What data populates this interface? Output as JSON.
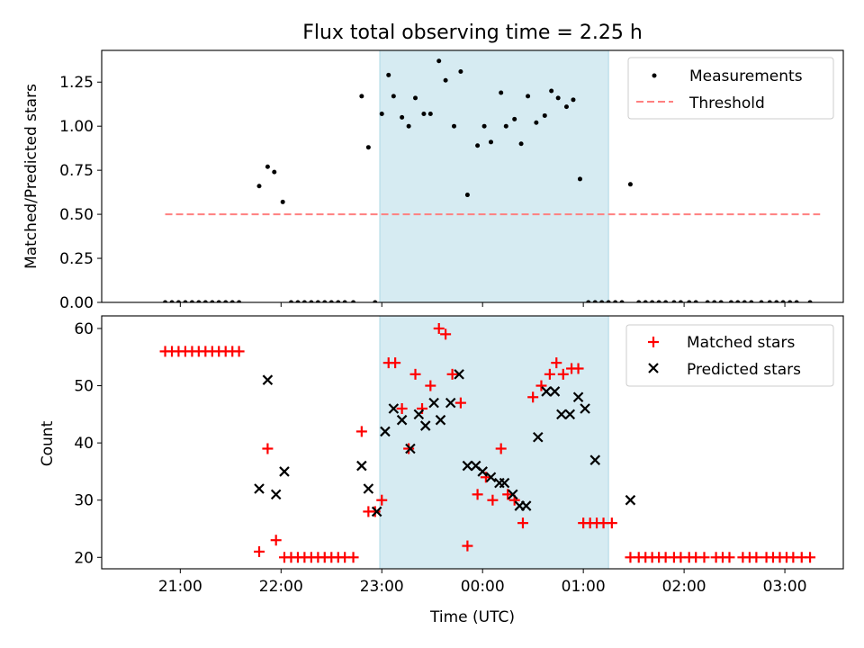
{
  "title": "Flux total observing time = 2.25 h",
  "colors": {
    "measurement": "#000000",
    "threshold": "#ff8080",
    "matched": "#ff0000",
    "predicted": "#000000",
    "shade": "#add8e6"
  },
  "chart_data": [
    {
      "type": "scatter",
      "ylabel": "Matched/Predicted stars",
      "xlabel": "",
      "x_unit": "hours since 21:00 UTC",
      "xlim": [
        -0.78,
        6.58
      ],
      "ylim": [
        0,
        1.43
      ],
      "yticks": [
        0,
        0.25,
        0.5,
        0.75,
        1.0,
        1.25
      ],
      "ytick_labels": [
        "0.00",
        "0.25",
        "0.50",
        "0.75",
        "1.00",
        "1.25"
      ],
      "shaded_interval": [
        1.98,
        4.25
      ],
      "legend": {
        "position": "upper-right",
        "entries": [
          "Measurements",
          "Threshold"
        ]
      },
      "threshold": {
        "name": "Threshold",
        "y": 0.5,
        "x": [
          -0.15,
          6.35
        ]
      },
      "series": [
        {
          "name": "Measurements",
          "points": [
            [
              -0.15,
              0
            ],
            [
              -0.083,
              0
            ],
            [
              -0.017,
              0
            ],
            [
              0.05,
              0
            ],
            [
              0.117,
              0
            ],
            [
              0.183,
              0
            ],
            [
              0.25,
              0
            ],
            [
              0.317,
              0
            ],
            [
              0.383,
              0
            ],
            [
              0.45,
              0
            ],
            [
              0.517,
              0
            ],
            [
              0.583,
              0
            ],
            [
              0.783,
              0.66
            ],
            [
              0.867,
              0.77
            ],
            [
              0.933,
              0.74
            ],
            [
              1.017,
              0.57
            ],
            [
              1.1,
              0
            ],
            [
              1.167,
              0
            ],
            [
              1.233,
              0
            ],
            [
              1.3,
              0
            ],
            [
              1.367,
              0
            ],
            [
              1.433,
              0
            ],
            [
              1.5,
              0
            ],
            [
              1.567,
              0
            ],
            [
              1.633,
              0
            ],
            [
              1.717,
              0
            ],
            [
              1.8,
              1.17
            ],
            [
              1.867,
              0.88
            ],
            [
              1.933,
              0
            ],
            [
              2.0,
              1.07
            ],
            [
              2.067,
              1.29
            ],
            [
              2.117,
              1.17
            ],
            [
              2.2,
              1.05
            ],
            [
              2.267,
              1.0
            ],
            [
              2.333,
              1.16
            ],
            [
              2.417,
              1.07
            ],
            [
              2.483,
              1.07
            ],
            [
              2.567,
              1.37
            ],
            [
              2.633,
              1.26
            ],
            [
              2.717,
              1.0
            ],
            [
              2.783,
              1.31
            ],
            [
              2.85,
              0.61
            ],
            [
              2.95,
              0.89
            ],
            [
              3.017,
              1.0
            ],
            [
              3.083,
              0.91
            ],
            [
              3.183,
              1.19
            ],
            [
              3.233,
              1.0
            ],
            [
              3.317,
              1.04
            ],
            [
              3.383,
              0.9
            ],
            [
              3.45,
              1.17
            ],
            [
              3.533,
              1.02
            ],
            [
              3.617,
              1.06
            ],
            [
              3.683,
              1.2
            ],
            [
              3.75,
              1.16
            ],
            [
              3.833,
              1.11
            ],
            [
              3.9,
              1.15
            ],
            [
              3.967,
              0.7
            ],
            [
              4.05,
              0
            ],
            [
              4.117,
              0
            ],
            [
              4.183,
              0
            ],
            [
              4.25,
              0
            ],
            [
              4.317,
              0
            ],
            [
              4.383,
              0
            ],
            [
              4.467,
              0.67
            ],
            [
              4.55,
              0
            ],
            [
              4.617,
              0
            ],
            [
              4.683,
              0
            ],
            [
              4.75,
              0
            ],
            [
              4.817,
              0
            ],
            [
              4.9,
              0
            ],
            [
              4.967,
              0
            ],
            [
              5.05,
              0
            ],
            [
              5.117,
              0
            ],
            [
              5.233,
              0
            ],
            [
              5.3,
              0
            ],
            [
              5.367,
              0
            ],
            [
              5.467,
              0
            ],
            [
              5.533,
              0
            ],
            [
              5.6,
              0
            ],
            [
              5.667,
              0
            ],
            [
              5.767,
              0
            ],
            [
              5.85,
              0
            ],
            [
              5.917,
              0
            ],
            [
              5.983,
              0
            ],
            [
              6.05,
              0
            ],
            [
              6.117,
              0
            ],
            [
              6.25,
              0
            ]
          ]
        }
      ]
    },
    {
      "type": "scatter",
      "ylabel": "Count",
      "xlabel": "Time (UTC)",
      "x_unit": "hours since 21:00 UTC",
      "xlim": [
        -0.78,
        6.58
      ],
      "ylim": [
        18,
        62.2
      ],
      "yticks": [
        20,
        30,
        40,
        50,
        60
      ],
      "ytick_labels": [
        "20",
        "30",
        "40",
        "50",
        "60"
      ],
      "xticks": [
        0,
        1,
        2,
        3,
        4,
        5,
        6
      ],
      "xtick_labels": [
        "21:00",
        "22:00",
        "23:00",
        "00:00",
        "01:00",
        "02:00",
        "03:00"
      ],
      "shaded_interval": [
        1.98,
        4.25
      ],
      "legend": {
        "position": "upper-right",
        "entries": [
          "Matched stars",
          "Predicted stars"
        ]
      },
      "series": [
        {
          "name": "Matched stars",
          "marker": "plus",
          "points": [
            [
              -0.15,
              56
            ],
            [
              -0.083,
              56
            ],
            [
              -0.017,
              56
            ],
            [
              0.05,
              56
            ],
            [
              0.117,
              56
            ],
            [
              0.183,
              56
            ],
            [
              0.25,
              56
            ],
            [
              0.317,
              56
            ],
            [
              0.383,
              56
            ],
            [
              0.45,
              56
            ],
            [
              0.517,
              56
            ],
            [
              0.583,
              56
            ],
            [
              0.783,
              21
            ],
            [
              0.867,
              39
            ],
            [
              0.95,
              23
            ],
            [
              1.033,
              20
            ],
            [
              1.1,
              20
            ],
            [
              1.167,
              20
            ],
            [
              1.233,
              20
            ],
            [
              1.3,
              20
            ],
            [
              1.367,
              20
            ],
            [
              1.433,
              20
            ],
            [
              1.5,
              20
            ],
            [
              1.567,
              20
            ],
            [
              1.633,
              20
            ],
            [
              1.717,
              20
            ],
            [
              1.8,
              42
            ],
            [
              1.867,
              28
            ],
            [
              1.933,
              28
            ],
            [
              2.0,
              30
            ],
            [
              2.067,
              54
            ],
            [
              2.133,
              54
            ],
            [
              2.2,
              46
            ],
            [
              2.267,
              39
            ],
            [
              2.333,
              52
            ],
            [
              2.4,
              46
            ],
            [
              2.483,
              50
            ],
            [
              2.567,
              60
            ],
            [
              2.633,
              59
            ],
            [
              2.7,
              52
            ],
            [
              2.783,
              47
            ],
            [
              2.85,
              22
            ],
            [
              2.95,
              31
            ],
            [
              3.033,
              34
            ],
            [
              3.1,
              30
            ],
            [
              3.183,
              39
            ],
            [
              3.25,
              31
            ],
            [
              3.317,
              30
            ],
            [
              3.4,
              26
            ],
            [
              3.5,
              48
            ],
            [
              3.583,
              50
            ],
            [
              3.667,
              52
            ],
            [
              3.733,
              54
            ],
            [
              3.8,
              52
            ],
            [
              3.883,
              53
            ],
            [
              3.95,
              53
            ],
            [
              4.0,
              26
            ],
            [
              4.067,
              26
            ],
            [
              4.133,
              26
            ],
            [
              4.2,
              26
            ],
            [
              4.283,
              26
            ],
            [
              4.467,
              20
            ],
            [
              4.55,
              20
            ],
            [
              4.617,
              20
            ],
            [
              4.683,
              20
            ],
            [
              4.75,
              20
            ],
            [
              4.817,
              20
            ],
            [
              4.9,
              20
            ],
            [
              4.967,
              20
            ],
            [
              5.05,
              20
            ],
            [
              5.117,
              20
            ],
            [
              5.2,
              20
            ],
            [
              5.317,
              20
            ],
            [
              5.383,
              20
            ],
            [
              5.45,
              20
            ],
            [
              5.583,
              20
            ],
            [
              5.65,
              20
            ],
            [
              5.717,
              20
            ],
            [
              5.817,
              20
            ],
            [
              5.883,
              20
            ],
            [
              5.95,
              20
            ],
            [
              6.017,
              20
            ],
            [
              6.083,
              20
            ],
            [
              6.167,
              20
            ],
            [
              6.25,
              20
            ]
          ]
        },
        {
          "name": "Predicted stars",
          "marker": "x",
          "points": [
            [
              0.783,
              32
            ],
            [
              0.867,
              51
            ],
            [
              0.95,
              31
            ],
            [
              1.033,
              35
            ],
            [
              1.8,
              36
            ],
            [
              1.867,
              32
            ],
            [
              1.95,
              28
            ],
            [
              2.033,
              42
            ],
            [
              2.117,
              46
            ],
            [
              2.2,
              44
            ],
            [
              2.283,
              39
            ],
            [
              2.367,
              45
            ],
            [
              2.433,
              43
            ],
            [
              2.517,
              47
            ],
            [
              2.583,
              44
            ],
            [
              2.683,
              47
            ],
            [
              2.767,
              52
            ],
            [
              2.85,
              36
            ],
            [
              2.933,
              36
            ],
            [
              3.0,
              35
            ],
            [
              3.083,
              34
            ],
            [
              3.167,
              33
            ],
            [
              3.217,
              33
            ],
            [
              3.3,
              31
            ],
            [
              3.367,
              29
            ],
            [
              3.433,
              29
            ],
            [
              3.55,
              41
            ],
            [
              3.633,
              49
            ],
            [
              3.717,
              49
            ],
            [
              3.783,
              45
            ],
            [
              3.867,
              45
            ],
            [
              3.95,
              48
            ],
            [
              4.017,
              46
            ],
            [
              4.117,
              37
            ],
            [
              4.467,
              30
            ]
          ]
        }
      ]
    }
  ]
}
